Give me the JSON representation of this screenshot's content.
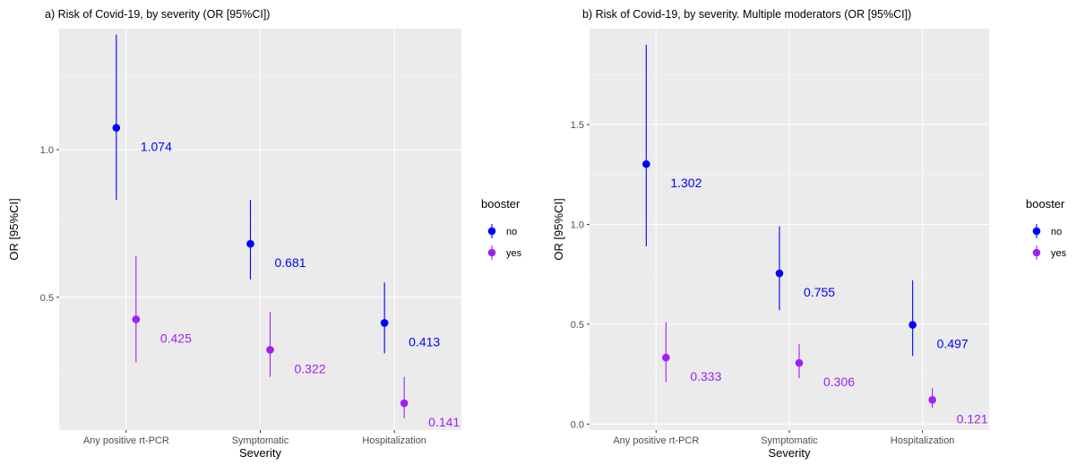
{
  "chart_data": [
    {
      "type": "scatter",
      "title": "a) Risk of Covid-19, by severity (OR [95%CI])",
      "xlabel": "Severity",
      "ylabel": "OR [95%CI]",
      "categories": [
        "Any positive rt-PCR",
        "Symptomatic",
        "Hospitalization"
      ],
      "yticks": [
        "0.5",
        "1.0"
      ],
      "yticks_values": [
        0.5,
        1.0
      ],
      "ylim": [
        0.05,
        1.41
      ],
      "legend": {
        "title": "booster",
        "position": "right"
      },
      "series": [
        {
          "name": "no",
          "color": "#0000ff",
          "values": [
            1.074,
            0.681,
            0.413
          ],
          "lower": [
            0.83,
            0.56,
            0.31
          ],
          "upper": [
            1.39,
            0.83,
            0.55
          ],
          "labels": [
            "1.074",
            "0.681",
            "0.413"
          ]
        },
        {
          "name": "yes",
          "color": "#a020f0",
          "values": [
            0.425,
            0.322,
            0.141
          ],
          "lower": [
            0.28,
            0.23,
            0.09
          ],
          "upper": [
            0.64,
            0.45,
            0.23
          ],
          "labels": [
            "0.425",
            "0.322",
            "0.141"
          ]
        }
      ]
    },
    {
      "type": "scatter",
      "title": "b) Risk of Covid-19, by severity. Multiple moderators (OR [95%CI])",
      "xlabel": "Severity",
      "ylabel": "OR [95%CI]",
      "categories": [
        "Any positive rt-PCR",
        "Symptomatic",
        "Hospitalization"
      ],
      "yticks": [
        "0.0",
        "0.5",
        "1.0",
        "1.5"
      ],
      "yticks_values": [
        0.0,
        0.5,
        1.0,
        1.5
      ],
      "ylim": [
        -0.03,
        1.98
      ],
      "legend": {
        "title": "booster",
        "position": "right"
      },
      "series": [
        {
          "name": "no",
          "color": "#0000ff",
          "values": [
            1.302,
            0.755,
            0.497
          ],
          "lower": [
            0.89,
            0.57,
            0.34
          ],
          "upper": [
            1.9,
            0.99,
            0.72
          ],
          "labels": [
            "1.302",
            "0.755",
            "0.497"
          ]
        },
        {
          "name": "yes",
          "color": "#a020f0",
          "values": [
            0.333,
            0.306,
            0.121
          ],
          "lower": [
            0.21,
            0.23,
            0.08
          ],
          "upper": [
            0.51,
            0.4,
            0.18
          ],
          "labels": [
            "0.333",
            "0.306",
            "0.121"
          ]
        }
      ]
    }
  ]
}
